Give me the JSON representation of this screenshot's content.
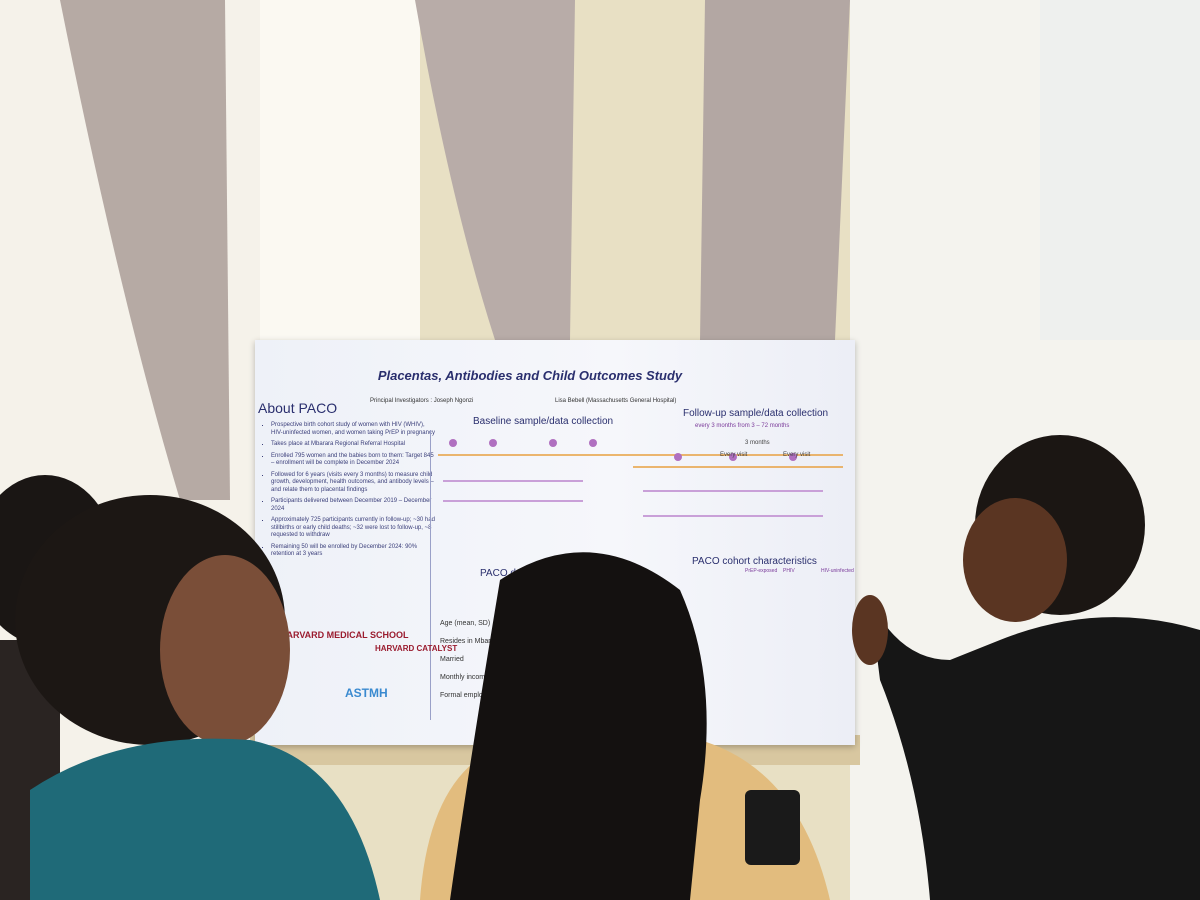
{
  "poster": {
    "title": "Placentas, Antibodies and Child Outcomes Study",
    "investigators": "Principal Investigators : Joseph Ngonzi",
    "investigators_2": "Lisa Bebell (Massachusetts General Hospital)",
    "about": {
      "heading": "About PACO",
      "bullets": [
        "Prospective birth cohort study of women with HIV (WHIV), HIV-uninfected women, and women taking PrEP in pregnancy",
        "Takes place at Mbarara Regional Referral Hospital",
        "Enrolled 795 women and the babies born to them: Target 845 – enrollment will be complete in December 2024",
        "Followed for 6 years (visits every 3 months) to measure child growth, development, health outcomes, and antibody levels – and relate them to placental findings",
        "Participants delivered between December 2019 – December 2024",
        "Approximately 725 participants currently in follow-up; ~30 had stillbirths or early child deaths; ~32 were lost to follow-up, ~8 requested to withdraw",
        "Remaining 50 will be enrolled by December 2024: 90% retention at 3 years"
      ]
    },
    "baseline_heading": "Baseline sample/data collection",
    "followup_heading": "Follow-up sample/data collection",
    "followup_note": "every 3 months from 3 – 72 months",
    "visits": [
      "Every visit",
      "Every visit",
      "3 months"
    ],
    "cohort_heading": "PACO cohort characteristics",
    "demographics_heading": "PACO dem",
    "table": {
      "columns": [
        "PrEP-exposed",
        "PHIV",
        "HIV-uninfected"
      ],
      "rows": [
        "Age (mean, SD)",
        "Resides in Mbarara district",
        "Married",
        "Monthly income (USD) (median, IQR)",
        "Formal employment"
      ]
    },
    "logos": [
      "HARVARD MEDICAL SCHOOL",
      "HARVARD CATALYST",
      "ASTMH"
    ]
  }
}
